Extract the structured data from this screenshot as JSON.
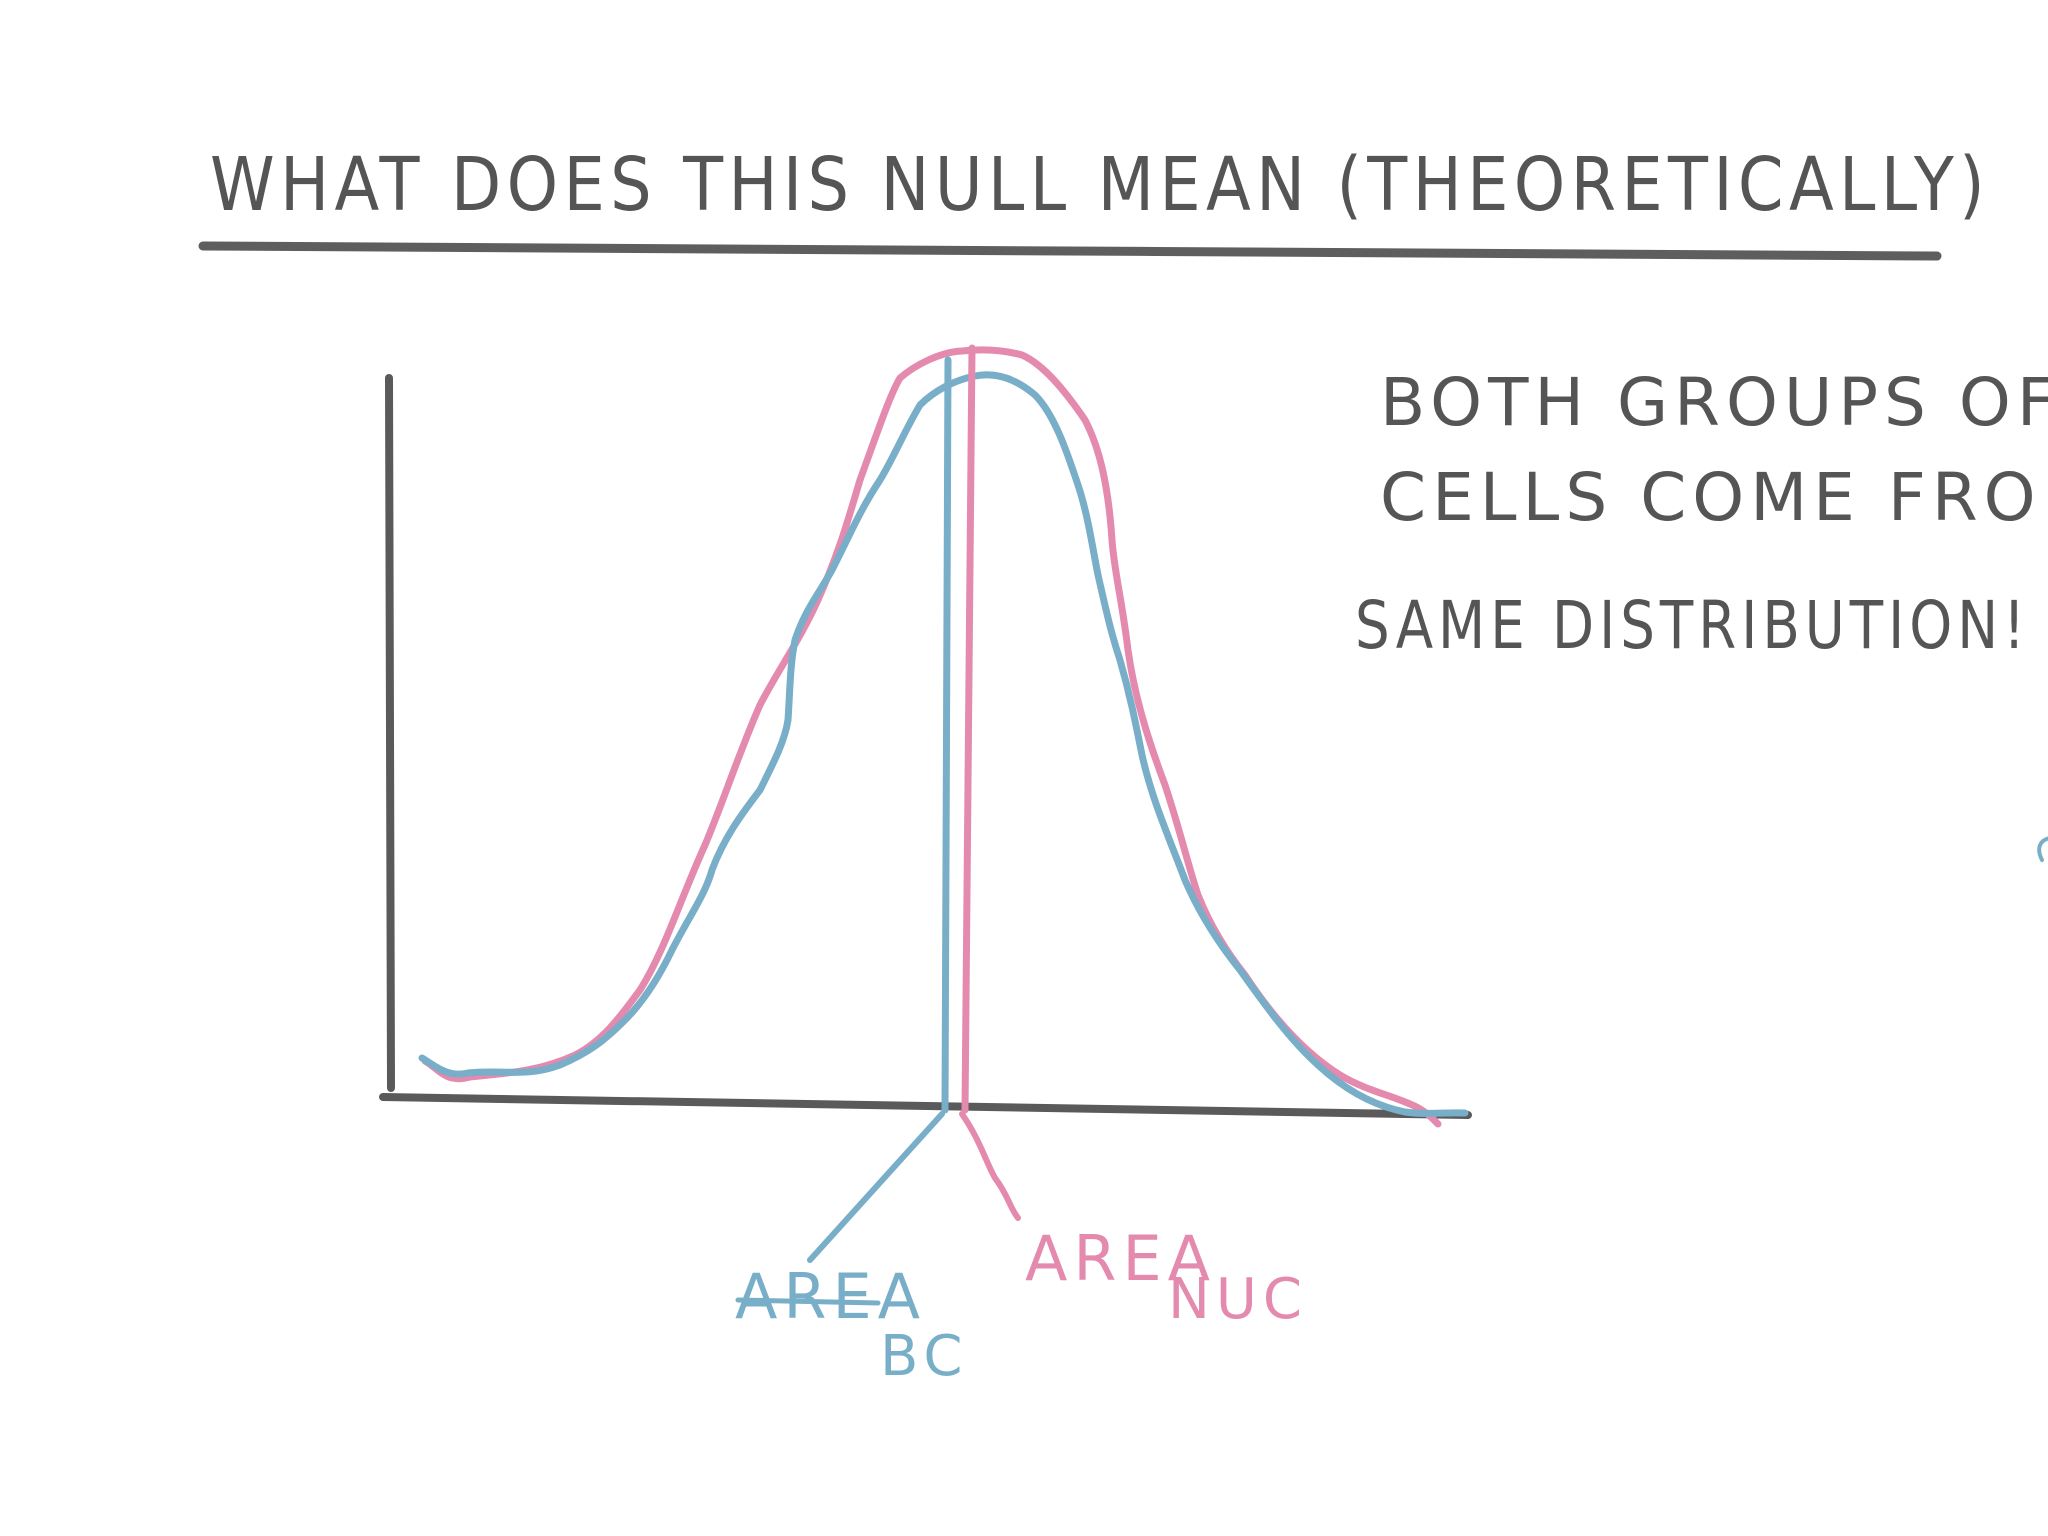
{
  "title": "WHAT DOES THIS NULL MEAN (THEORETICALLY)",
  "note_lines": [
    "BOTH GROUPS OF",
    "CELLS COME FROM",
    "SAME DISTRIBUTION!"
  ],
  "labels": {
    "bc_main": "AREA",
    "bc_sub": "BC",
    "nuc_main": "AREA",
    "nuc_sub": "NUC"
  },
  "colors": {
    "ink": "#5a5a5a",
    "bc": "#78aec8",
    "nuc": "#e48aae"
  }
}
